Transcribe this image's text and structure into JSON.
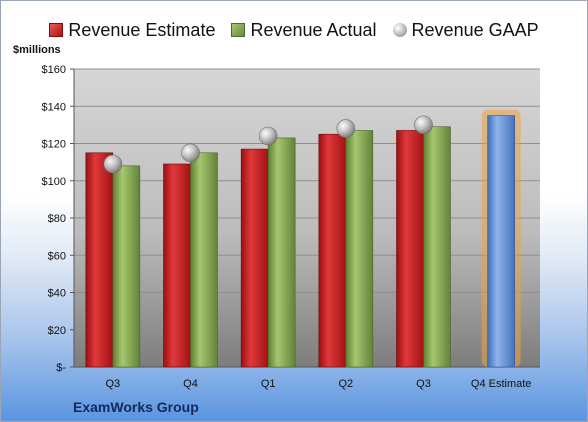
{
  "legend": {
    "estimate": "Revenue Estimate",
    "actual": "Revenue Actual",
    "gaap": "Revenue GAAP"
  },
  "unit_label": "$millions",
  "company": "ExamWorks Group",
  "chart_data": {
    "type": "bar",
    "categories": [
      "Q3",
      "Q4",
      "Q1",
      "Q2",
      "Q3",
      "Q4 Estimate"
    ],
    "series": [
      {
        "name": "Revenue Estimate",
        "values": [
          115,
          109,
          117,
          125,
          127,
          null
        ]
      },
      {
        "name": "Revenue Actual",
        "values": [
          108,
          115,
          123,
          127,
          129,
          135
        ]
      },
      {
        "name": "Revenue GAAP",
        "values": [
          109,
          115,
          124,
          128,
          130,
          null
        ]
      }
    ],
    "yticks": [
      "$-",
      "$20",
      "$40",
      "$60",
      "$80",
      "$100",
      "$120",
      "$140",
      "$160"
    ],
    "ylim": [
      0,
      160
    ],
    "colors": {
      "estimate": "#c0171a",
      "actual": "#7ea04a",
      "projection": "#5d8ed6",
      "projection_glow": "#f0a040",
      "gaap": "#a9a9a9"
    },
    "grid": true,
    "legend_position": "top"
  }
}
